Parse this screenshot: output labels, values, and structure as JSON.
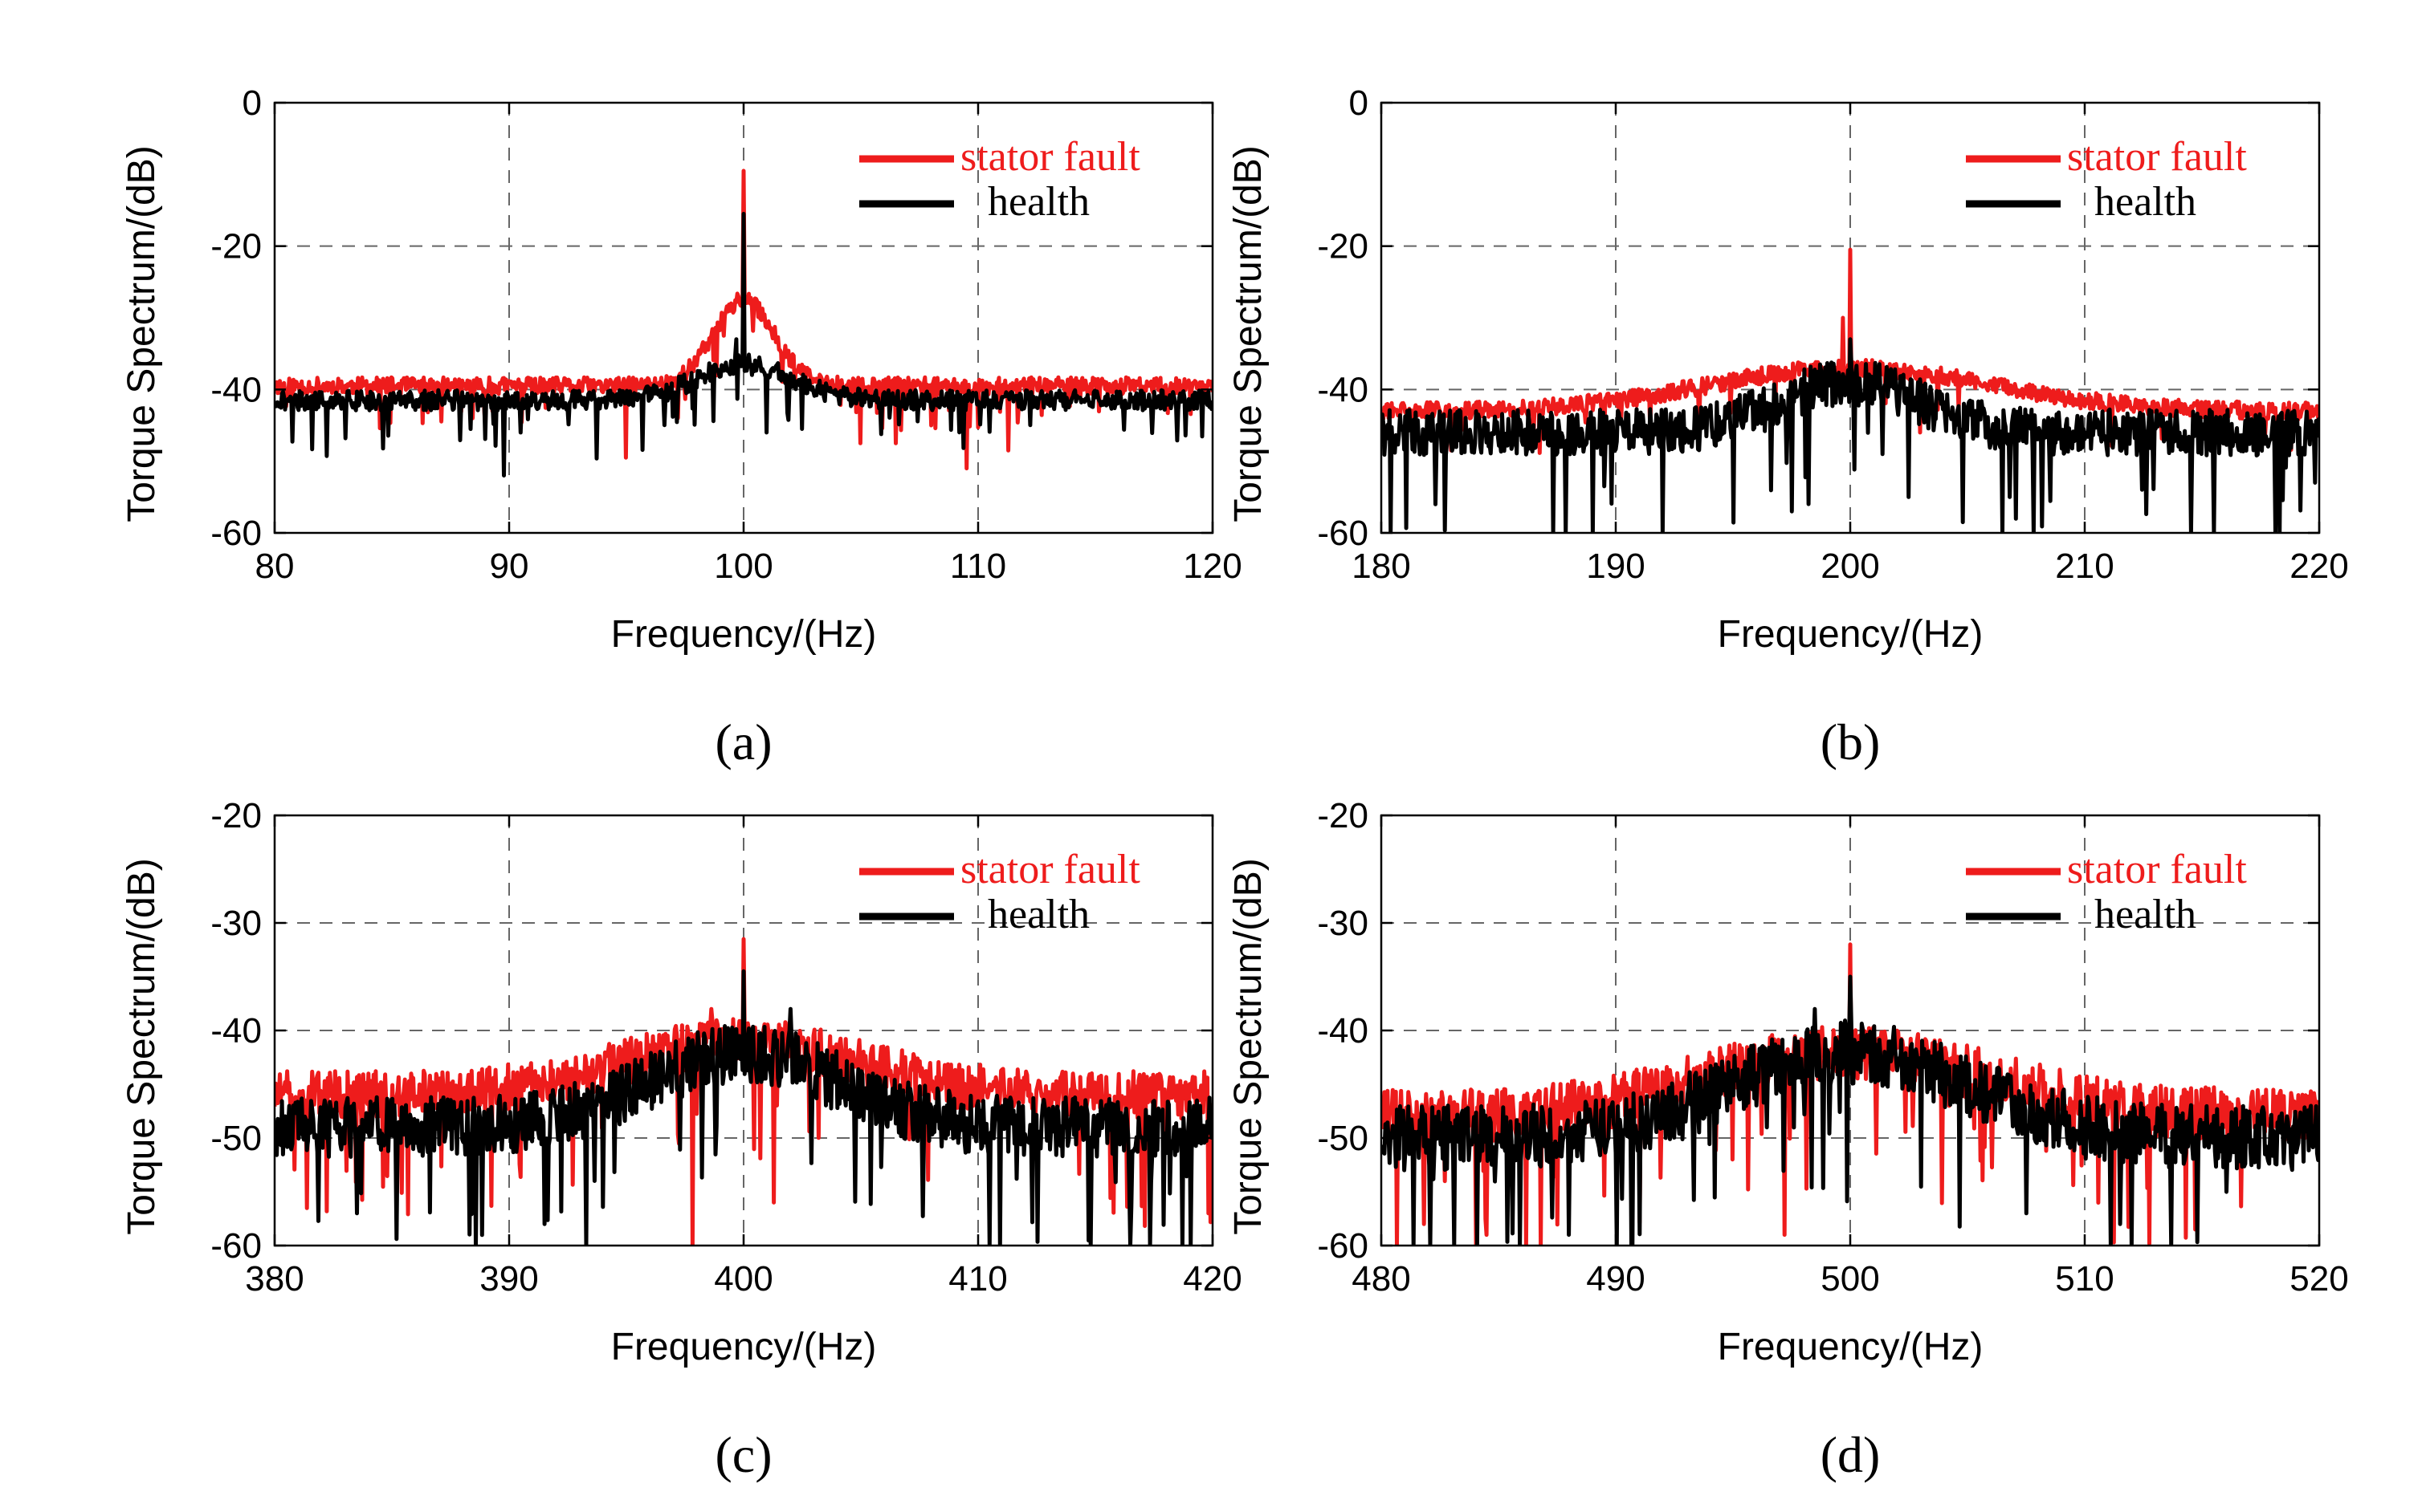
{
  "chart_data": [
    {
      "id": "a",
      "type": "line",
      "panel_label": "(a)",
      "xlabel": "Frequency/(Hz)",
      "ylabel": "Torque Spectrum/(dB)",
      "xlim": [
        80,
        120
      ],
      "ylim": [
        -60,
        0
      ],
      "xticks": [
        80,
        90,
        100,
        110,
        120
      ],
      "yticks": [
        -60,
        -40,
        -20,
        0
      ],
      "grid": true,
      "legend_position": "top-right",
      "center": 100,
      "series": [
        {
          "name": "stator fault",
          "color": "#ee1c1c",
          "baseline": -39.5,
          "noise": 1.2,
          "hump_height": 12,
          "hump_width": 1.3,
          "peaks": [
            [
              100,
              -9.5
            ],
            [
              99.8,
              -27
            ],
            [
              95,
              -49.5
            ],
            [
              97.2,
              -44
            ],
            [
              105,
              -47.5
            ],
            [
              106.5,
              -47.5
            ],
            [
              109.5,
              -51
            ],
            [
              111.3,
              -48.5
            ],
            [
              108,
              -45
            ]
          ],
          "seed": 11
        },
        {
          "name": "health",
          "color": "#000000",
          "baseline": -41.5,
          "noise": 1.4,
          "hump_height": 5,
          "hump_width": 2.0,
          "peaks": [
            [
              100,
              -15.5
            ],
            [
              89.8,
              -52
            ],
            [
              99.7,
              -33
            ],
            [
              101,
              -46
            ],
            [
              90.5,
              -46
            ],
            [
              102.5,
              -45.5
            ]
          ],
          "seed": 21
        }
      ]
    },
    {
      "id": "b",
      "type": "line",
      "panel_label": "(b)",
      "xlabel": "Frequency/(Hz)",
      "ylabel": "Torque Spectrum/(dB)",
      "xlim": [
        180,
        220
      ],
      "ylim": [
        -60,
        0
      ],
      "xticks": [
        180,
        190,
        200,
        210,
        220
      ],
      "yticks": [
        -60,
        -40,
        -20,
        0
      ],
      "grid": true,
      "legend_position": "top-right",
      "center": 200,
      "series": [
        {
          "name": "stator fault",
          "color": "#ee1c1c",
          "baseline": -43,
          "noise": 1.2,
          "hump_height": 6,
          "hump_width": 6,
          "peaks": [
            [
              200,
              -20.5
            ],
            [
              199.7,
              -30
            ],
            [
              183,
              -48.5
            ],
            [
              197.5,
              -46
            ],
            [
              203,
              -46
            ]
          ],
          "seed": 31
        },
        {
          "name": "health",
          "color": "#000000",
          "baseline": -46,
          "noise": 3.2,
          "hump_height": 7,
          "hump_width": 3,
          "peaks": [
            [
              200,
              -33
            ],
            [
              197.5,
              -57
            ],
            [
              204.8,
              -58.5
            ],
            [
              202.5,
              -55
            ],
            [
              206.8,
              -55
            ],
            [
              189.5,
              -53.5
            ],
            [
              219.8,
              -53
            ]
          ],
          "seed": 41
        }
      ]
    },
    {
      "id": "c",
      "type": "line",
      "panel_label": "(c)",
      "xlabel": "Frequency/(Hz)",
      "ylabel": "Torque Spectrum/(dB)",
      "xlim": [
        380,
        420
      ],
      "ylim": [
        -60,
        -20
      ],
      "xticks": [
        380,
        390,
        400,
        410,
        420
      ],
      "yticks": [
        -60,
        -50,
        -40,
        -30,
        -20
      ],
      "grid": true,
      "legend_position": "top-right",
      "center": 400,
      "series": [
        {
          "name": "stator fault",
          "color": "#ee1c1c",
          "baseline": -46,
          "noise": 2.2,
          "hump_height": 5,
          "hump_width": 5,
          "peaks": [
            [
              400,
              -31.5
            ],
            [
              397.8,
              -60
            ],
            [
              401.3,
              -56
            ],
            [
              398.6,
              -38
            ],
            [
              419.8,
              -57
            ]
          ],
          "seed": 51
        },
        {
          "name": "health",
          "color": "#000000",
          "baseline": -49,
          "noise": 2.8,
          "hump_height": 7,
          "hump_width": 4,
          "peaks": [
            [
              400,
              -34.5
            ],
            [
              393.3,
              -60
            ],
            [
              410.5,
              -60
            ],
            [
              414.8,
              -60
            ],
            [
              383.5,
              -57
            ],
            [
              391.5,
              -58
            ],
            [
              402,
              -38
            ]
          ],
          "seed": 61
        }
      ]
    },
    {
      "id": "d",
      "type": "line",
      "panel_label": "(d)",
      "xlabel": "Frequency/(Hz)",
      "ylabel": "Torque Spectrum/(dB)",
      "xlim": [
        480,
        520
      ],
      "ylim": [
        -60,
        -20
      ],
      "xticks": [
        480,
        490,
        500,
        510,
        520
      ],
      "yticks": [
        -60,
        -50,
        -40,
        -30,
        -20
      ],
      "grid": true,
      "legend_position": "top-right",
      "center": 500,
      "series": [
        {
          "name": "stator fault",
          "color": "#ee1c1c",
          "baseline": -48,
          "noise": 2.5,
          "hump_height": 6,
          "hump_width": 6,
          "peaks": [
            [
              500,
              -32
            ],
            [
              486.8,
              -60
            ],
            [
              497.2,
              -59
            ],
            [
              481.8,
              -58
            ],
            [
              484.5,
              -59
            ]
          ],
          "seed": 71
        },
        {
          "name": "health",
          "color": "#000000",
          "baseline": -50,
          "noise": 3,
          "hump_height": 8,
          "hump_width": 5,
          "peaks": [
            [
              500,
              -35
            ],
            [
              512,
              -60
            ],
            [
              488,
              -59
            ],
            [
              507.5,
              -57
            ],
            [
              511.5,
              -58
            ],
            [
              498.5,
              -38
            ]
          ],
          "seed": 81
        }
      ]
    }
  ]
}
